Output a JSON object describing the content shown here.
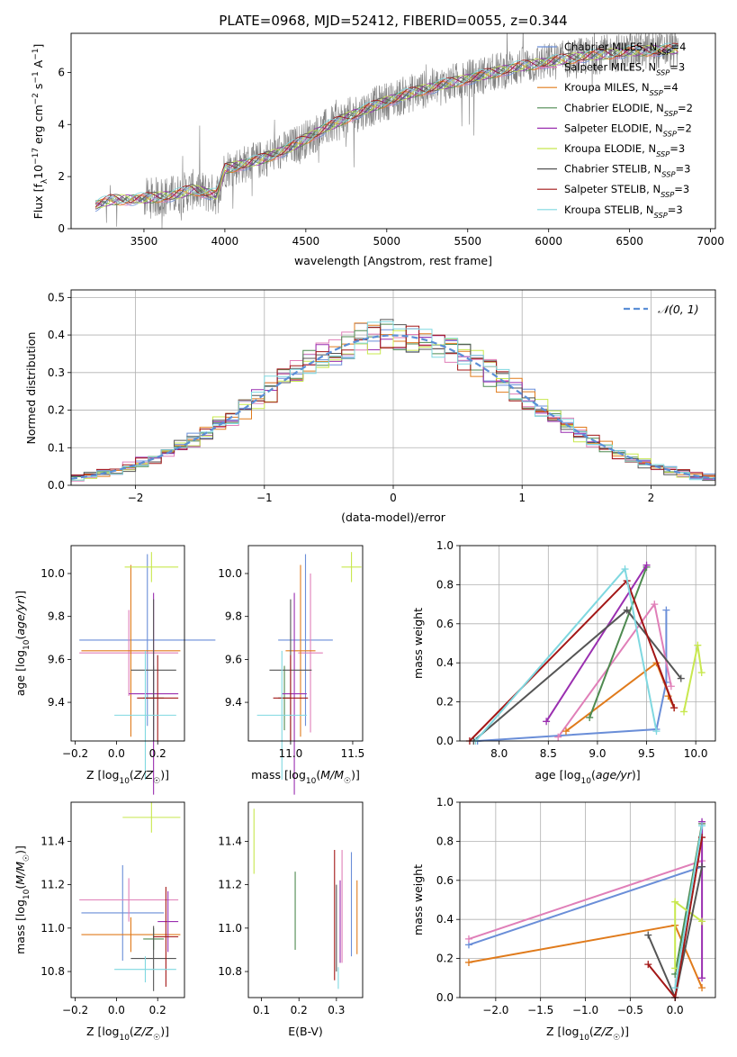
{
  "figure": {
    "title": "PLATE=0968, MJD=52412, FIBERID=0055, z=0.344"
  },
  "colors": {
    "Chabrier MILES": "#6a8ed8",
    "Salpeter MILES": "#e07fb8",
    "Kroupa MILES": "#e07b1c",
    "Chabrier ELODIE": "#4e8a50",
    "Salpeter ELODIE": "#9a2fb0",
    "Kroupa ELODIE": "#c8e84e",
    "Chabrier STELIB": "#555555",
    "Salpeter STELIB": "#a31717",
    "Kroupa STELIB": "#7fd8e0",
    "observed": "#808080",
    "normal": "#5b8fd6"
  },
  "legend_spectrum": [
    {
      "name": "Chabrier MILES",
      "nssp": "4"
    },
    {
      "name": "Salpeter MILES",
      "nssp": "3"
    },
    {
      "name": "Kroupa MILES",
      "nssp": "4"
    },
    {
      "name": "Chabrier ELODIE",
      "nssp": "2"
    },
    {
      "name": "Salpeter ELODIE",
      "nssp": "2"
    },
    {
      "name": "Kroupa ELODIE",
      "nssp": "3"
    },
    {
      "name": "Chabrier STELIB",
      "nssp": "3"
    },
    {
      "name": "Salpeter STELIB",
      "nssp": "3"
    },
    {
      "name": "Kroupa STELIB",
      "nssp": "3"
    }
  ],
  "chart_data": [
    {
      "id": "spectrum",
      "type": "line",
      "xlabel": "wavelength [Angstrom, rest frame]",
      "ylabel": "Flux [f_λ 10^-17 erg cm^-2 s^-1 A^-1]",
      "xlim": [
        3050,
        7030
      ],
      "ylim": [
        0,
        7.5
      ],
      "xticks": [
        3500,
        4000,
        4500,
        5000,
        5500,
        6000,
        6500,
        7000
      ],
      "yticks": [
        0,
        2,
        4,
        6
      ],
      "model_continuum": {
        "x": [
          3200,
          3300,
          3500,
          3700,
          3800,
          3950,
          4000,
          4200,
          4400,
          4600,
          4800,
          5000,
          5200,
          5400,
          5600,
          5800,
          6000,
          6200,
          6500,
          6800
        ],
        "y": [
          0.9,
          1.1,
          1.15,
          1.3,
          1.5,
          1.3,
          2.3,
          2.6,
          3.1,
          3.8,
          4.4,
          4.9,
          5.3,
          5.6,
          5.9,
          6.2,
          6.4,
          6.6,
          6.8,
          6.9
        ]
      },
      "observed_range": [
        3200,
        6800
      ]
    },
    {
      "id": "residuals",
      "type": "histogram",
      "xlabel": "(data-model)/error",
      "ylabel": "Normed distribution",
      "xlim": [
        -2.5,
        2.5
      ],
      "ylim": [
        0,
        0.52
      ],
      "xticks": [
        -2,
        -1,
        0,
        1,
        2
      ],
      "yticks": [
        0.0,
        0.1,
        0.2,
        0.3,
        0.4,
        0.5
      ],
      "legend": "𝒩(0, 1)",
      "bin_width": 0.1
    },
    {
      "id": "age_vs_Z",
      "type": "errorbar",
      "xlabel": "Z [log10(Z/Z☉)]",
      "ylabel": "age [log10(age/yr)]",
      "xlim": [
        -0.22,
        0.33
      ],
      "ylim": [
        9.22,
        10.13
      ],
      "xticks": [
        -0.2,
        0.0,
        0.2
      ],
      "yticks": [
        9.4,
        9.6,
        9.8,
        10.0
      ],
      "points": [
        {
          "name": "Chabrier MILES",
          "x": 0.15,
          "xerr": 0.33,
          "y": 9.69,
          "yerr": 0.4
        },
        {
          "name": "Salpeter MILES",
          "x": 0.06,
          "xerr": 0.24,
          "y": 9.63,
          "yerr": 0.2
        },
        {
          "name": "Kroupa MILES",
          "x": 0.07,
          "xerr": 0.24,
          "y": 9.64,
          "yerr": 0.4
        },
        {
          "name": "Chabrier ELODIE",
          "x": 0.18,
          "xerr": 0.05,
          "y": 9.42,
          "yerr": 0.15
        },
        {
          "name": "Salpeter ELODIE",
          "x": 0.18,
          "xerr": 0.12,
          "y": 9.44,
          "yerr": 0.47
        },
        {
          "name": "Kroupa ELODIE",
          "x": 0.17,
          "xerr": 0.13,
          "y": 10.03,
          "yerr": 0.07
        },
        {
          "name": "Chabrier STELIB",
          "x": 0.18,
          "xerr": 0.11,
          "y": 9.55,
          "yerr": 0.33
        },
        {
          "name": "Salpeter STELIB",
          "x": 0.2,
          "xerr": 0.1,
          "y": 9.42,
          "yerr": 0.2
        },
        {
          "name": "Kroupa STELIB",
          "x": 0.14,
          "xerr": 0.15,
          "y": 9.34,
          "yerr": 0.3
        }
      ]
    },
    {
      "id": "age_vs_mass",
      "type": "errorbar",
      "xlabel": "mass [log10(M/M☉)]",
      "xlim": [
        10.66,
        11.58
      ],
      "ylim": [
        9.22,
        10.13
      ],
      "xticks": [
        11.0,
        11.5
      ],
      "yticks": [
        9.4,
        9.6,
        9.8,
        10.0
      ],
      "points": [
        {
          "name": "Chabrier MILES",
          "x": 11.12,
          "xerr": 0.22,
          "y": 9.69,
          "yerr": 0.4
        },
        {
          "name": "Salpeter MILES",
          "x": 11.16,
          "xerr": 0.1,
          "y": 9.63,
          "yerr": 0.37
        },
        {
          "name": "Kroupa MILES",
          "x": 11.08,
          "xerr": 0.12,
          "y": 9.64,
          "yerr": 0.4
        },
        {
          "name": "Chabrier ELODIE",
          "x": 10.95,
          "xerr": 0.05,
          "y": 9.42,
          "yerr": 0.15
        },
        {
          "name": "Salpeter ELODIE",
          "x": 11.03,
          "xerr": 0.1,
          "y": 9.44,
          "yerr": 0.47
        },
        {
          "name": "Kroupa ELODIE",
          "x": 11.49,
          "xerr": 0.08,
          "y": 10.03,
          "yerr": 0.07
        },
        {
          "name": "Chabrier STELIB",
          "x": 11.0,
          "xerr": 0.17,
          "y": 9.55,
          "yerr": 0.33
        },
        {
          "name": "Salpeter STELIB",
          "x": 11.0,
          "xerr": 0.14,
          "y": 9.42,
          "yerr": 0.2
        },
        {
          "name": "Kroupa STELIB",
          "x": 10.93,
          "xerr": 0.2,
          "y": 9.34,
          "yerr": 0.3
        }
      ]
    },
    {
      "id": "weight_vs_age",
      "type": "line",
      "xlabel": "age [log10(age/yr)]",
      "ylabel": "mass weight",
      "xlim": [
        7.6,
        10.2
      ],
      "ylim": [
        0,
        1
      ],
      "xticks": [
        8.0,
        8.5,
        9.0,
        9.5,
        10.0
      ],
      "yticks": [
        0.0,
        0.2,
        0.4,
        0.6,
        0.8,
        1.0
      ],
      "series": [
        {
          "name": "Chabrier MILES",
          "x": [
            7.78,
            9.6,
            9.7,
            9.7
          ],
          "y": [
            0.0,
            0.06,
            0.3,
            0.67
          ]
        },
        {
          "name": "Salpeter MILES",
          "x": [
            8.6,
            9.58,
            9.75
          ],
          "y": [
            0.02,
            0.7,
            0.28
          ]
        },
        {
          "name": "Kroupa MILES",
          "x": [
            8.68,
            9.6,
            9.78,
            9.72
          ],
          "y": [
            0.05,
            0.4,
            0.17,
            0.23
          ]
        },
        {
          "name": "Chabrier ELODIE",
          "x": [
            8.92,
            9.5
          ],
          "y": [
            0.12,
            0.89
          ]
        },
        {
          "name": "Salpeter ELODIE",
          "x": [
            8.48,
            9.5
          ],
          "y": [
            0.1,
            0.9
          ]
        },
        {
          "name": "Kroupa ELODIE",
          "x": [
            9.88,
            10.02,
            10.06
          ],
          "y": [
            0.15,
            0.49,
            0.35
          ]
        },
        {
          "name": "Chabrier STELIB",
          "x": [
            7.74,
            9.3,
            9.85
          ],
          "y": [
            0.0,
            0.67,
            0.32
          ]
        },
        {
          "name": "Salpeter STELIB",
          "x": [
            7.7,
            9.3,
            9.78
          ],
          "y": [
            0.0,
            0.82,
            0.17
          ]
        },
        {
          "name": "Kroupa STELIB",
          "x": [
            7.76,
            9.28,
            9.6
          ],
          "y": [
            0.0,
            0.88,
            0.05
          ]
        }
      ]
    },
    {
      "id": "mass_vs_Z",
      "type": "errorbar",
      "xlabel": "Z [log10(Z/Z☉)]",
      "ylabel": "mass [log10(M/M☉)]",
      "xlim": [
        -0.22,
        0.33
      ],
      "ylim": [
        10.68,
        11.58
      ],
      "xticks": [
        -0.2,
        0.0,
        0.2
      ],
      "yticks": [
        10.8,
        11.0,
        11.2,
        11.4
      ],
      "points": [
        {
          "name": "Chabrier MILES",
          "x": 0.03,
          "xerr": 0.2,
          "y": 11.07,
          "yerr": 0.22
        },
        {
          "name": "Salpeter MILES",
          "x": 0.06,
          "xerr": 0.24,
          "y": 11.13,
          "yerr": 0.1
        },
        {
          "name": "Kroupa MILES",
          "x": 0.07,
          "xerr": 0.24,
          "y": 10.97,
          "yerr": 0.08
        },
        {
          "name": "Chabrier ELODIE",
          "x": 0.18,
          "xerr": 0.05,
          "y": 10.95,
          "yerr": 0.05
        },
        {
          "name": "Salpeter ELODIE",
          "x": 0.25,
          "xerr": 0.05,
          "y": 11.03,
          "yerr": 0.14
        },
        {
          "name": "Kroupa ELODIE",
          "x": 0.17,
          "xerr": 0.14,
          "y": 11.51,
          "yerr": 0.07
        },
        {
          "name": "Chabrier STELIB",
          "x": 0.18,
          "xerr": 0.11,
          "y": 10.86,
          "yerr": 0.15
        },
        {
          "name": "Salpeter STELIB",
          "x": 0.24,
          "xerr": 0.06,
          "y": 10.96,
          "yerr": 0.23
        },
        {
          "name": "Kroupa STELIB",
          "x": 0.14,
          "xerr": 0.15,
          "y": 10.81,
          "yerr": 0.06
        }
      ]
    },
    {
      "id": "mass_vs_ebv",
      "type": "errorbar",
      "xlabel": "E(B-V)",
      "xlim": [
        0.065,
        0.37
      ],
      "ylim": [
        10.68,
        11.58
      ],
      "xticks": [
        0.1,
        0.2,
        0.3
      ],
      "yticks": [
        10.8,
        11.0,
        11.2,
        11.4
      ],
      "points": [
        {
          "name": "Chabrier MILES",
          "x": 0.34,
          "y": 11.11,
          "yerr": 0.24
        },
        {
          "name": "Salpeter MILES",
          "x": 0.315,
          "y": 11.1,
          "yerr": 0.26
        },
        {
          "name": "Kroupa MILES",
          "x": 0.355,
          "y": 11.05,
          "yerr": 0.17
        },
        {
          "name": "Chabrier ELODIE",
          "x": 0.19,
          "y": 11.08,
          "yerr": 0.18
        },
        {
          "name": "Salpeter ELODIE",
          "x": 0.31,
          "y": 11.03,
          "yerr": 0.19
        },
        {
          "name": "Kroupa ELODIE",
          "x": 0.08,
          "y": 11.4,
          "yerr": 0.15
        },
        {
          "name": "Chabrier STELIB",
          "x": 0.3,
          "y": 11.0,
          "yerr": 0.2
        },
        {
          "name": "Salpeter STELIB",
          "x": 0.295,
          "y": 11.06,
          "yerr": 0.3
        },
        {
          "name": "Kroupa STELIB",
          "x": 0.305,
          "y": 10.77,
          "yerr": 0.05
        }
      ]
    },
    {
      "id": "weight_vs_Z",
      "type": "line",
      "xlabel": "Z [log10(Z/Z☉)]",
      "ylabel": "mass weight",
      "xlim": [
        -2.4,
        0.45
      ],
      "ylim": [
        0,
        1
      ],
      "xticks": [
        -2.0,
        -1.5,
        -1.0,
        -0.5,
        0.0
      ],
      "yticks": [
        0.0,
        0.2,
        0.4,
        0.6,
        0.8,
        1.0
      ],
      "series": [
        {
          "name": "Chabrier MILES",
          "x": [
            -2.3,
            0.3
          ],
          "y": [
            0.27,
            0.67
          ]
        },
        {
          "name": "Salpeter MILES",
          "x": [
            -2.3,
            0.3
          ],
          "y": [
            0.3,
            0.7
          ]
        },
        {
          "name": "Kroupa MILES",
          "x": [
            -2.3,
            0.0,
            0.3
          ],
          "y": [
            0.18,
            0.37,
            0.05
          ]
        },
        {
          "name": "Chabrier ELODIE",
          "x": [
            0.0,
            0.3
          ],
          "y": [
            0.12,
            0.89
          ]
        },
        {
          "name": "Salpeter ELODIE",
          "x": [
            0.3,
            0.3
          ],
          "y": [
            0.1,
            0.9
          ]
        },
        {
          "name": "Kroupa ELODIE",
          "x": [
            0.0,
            0.0,
            0.3
          ],
          "y": [
            0.15,
            0.49,
            0.39
          ]
        },
        {
          "name": "Chabrier STELIB",
          "x": [
            -0.3,
            0.0,
            0.3
          ],
          "y": [
            0.32,
            0.0,
            0.67
          ]
        },
        {
          "name": "Salpeter STELIB",
          "x": [
            -0.3,
            0.0,
            0.3
          ],
          "y": [
            0.17,
            0.0,
            0.82
          ]
        },
        {
          "name": "Kroupa STELIB",
          "x": [
            0.0,
            0.3
          ],
          "y": [
            0.05,
            0.88
          ]
        }
      ]
    }
  ]
}
